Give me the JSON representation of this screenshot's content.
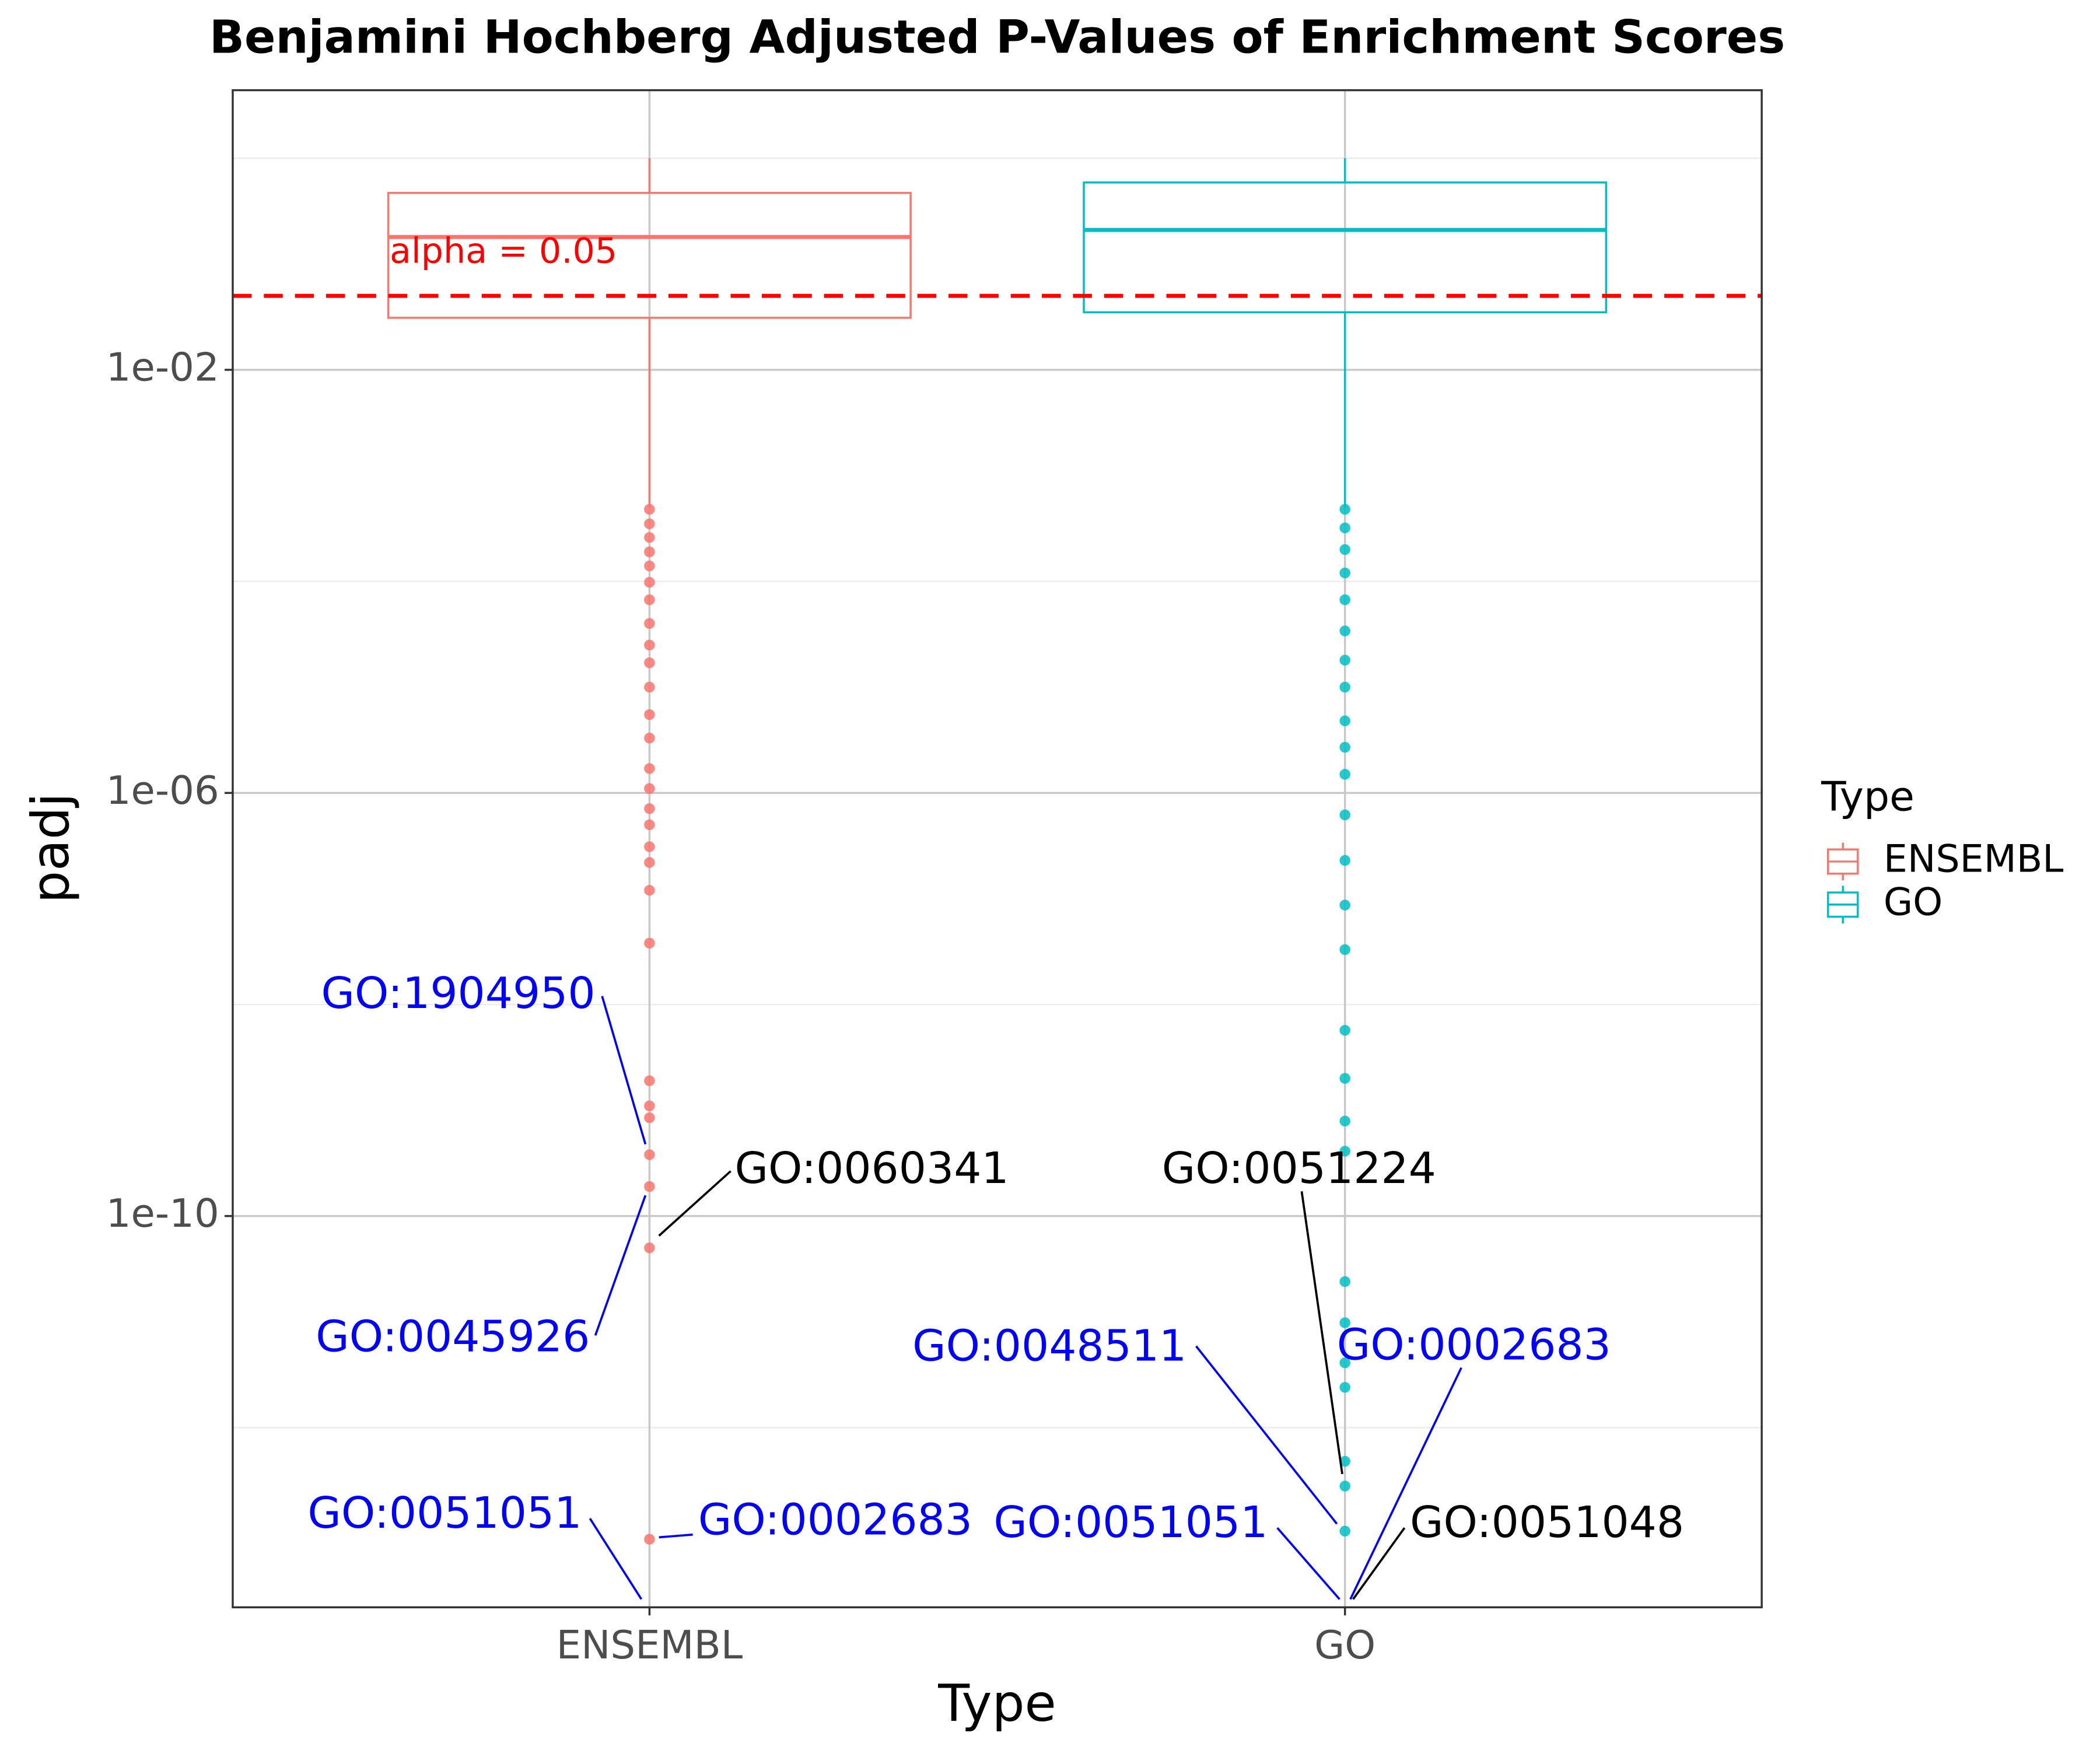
{
  "chart_data": {
    "type": "box",
    "title": "Benjamini Hochberg Adjusted P-Values of Enrichment Scores",
    "x_label": "Type",
    "y_label": "padj",
    "categories": [
      "ENSEMBL",
      "GO"
    ],
    "log_y": true,
    "grid": true,
    "ylim": [
      2e-14,
      4.4
    ],
    "yticks": [
      {
        "value": 0.01,
        "label": "1e-02"
      },
      {
        "value": 1e-06,
        "label": "1e-06"
      },
      {
        "value": 1e-10,
        "label": "1e-10"
      }
    ],
    "minor_grid": [
      1,
      0.0001,
      1e-08,
      1e-12
    ],
    "legend_title": "Type",
    "legend_position": "right",
    "series": [
      {
        "name": "ENSEMBL",
        "color": "#F8766D",
        "box": {
          "whislo": 0.0005,
          "q1": 0.031,
          "median": 0.18,
          "q3": 0.47,
          "whishi": 1
        },
        "outliers": [
          0.00048,
          0.00035,
          0.00026,
          0.00019,
          0.00014,
          9.8e-05,
          6.7e-05,
          4e-05,
          2.5e-05,
          1.7e-05,
          1e-05,
          5.5e-06,
          3.3e-06,
          1.7e-06,
          1.1e-06,
          7.1e-07,
          5e-07,
          3.1e-07,
          2.2e-07,
          1.2e-07,
          3.8e-08,
          1.9e-09,
          1.1e-09,
          8.5e-10,
          3.8e-10,
          1.9e-10,
          5e-11,
          8.8e-14
        ]
      },
      {
        "name": "GO",
        "color": "#00BFC4",
        "box": {
          "whislo": 0.0005,
          "q1": 0.035,
          "median": 0.21,
          "q3": 0.59,
          "whishi": 1
        },
        "outliers": [
          0.00048,
          0.00032,
          0.0002,
          0.00012,
          6.7e-05,
          3.4e-05,
          1.8e-05,
          1e-05,
          4.8e-06,
          2.7e-06,
          1.5e-06,
          6.2e-07,
          2.3e-07,
          8.7e-08,
          3.3e-08,
          5.7e-09,
          2e-09,
          7.9e-10,
          4.1e-10,
          2.4e-11,
          9.8e-12,
          4.1e-12,
          2.4e-12,
          4.8e-13,
          2.8e-13,
          1.05e-13
        ]
      }
    ],
    "hline": {
      "value": 0.05,
      "label": "alpha = 0.05",
      "color": "#ff0000"
    },
    "annotations": [
      {
        "text": "GO:1904950",
        "color": "#0000ff"
      },
      {
        "text": "GO:0060341",
        "color": "#000000"
      },
      {
        "text": "GO:0045926",
        "color": "#0000ff"
      },
      {
        "text": "GO:0051051",
        "color": "#0000ff"
      },
      {
        "text": "GO:0002683",
        "color": "#0000ff"
      },
      {
        "text": "GO:0051224",
        "color": "#000000"
      },
      {
        "text": "GO:0048511",
        "color": "#0000ff"
      },
      {
        "text": "GO:0002683",
        "color": "#0000ff"
      },
      {
        "text": "GO:0051051",
        "color": "#0000ff"
      },
      {
        "text": "GO:0051048",
        "color": "#000000"
      }
    ]
  }
}
